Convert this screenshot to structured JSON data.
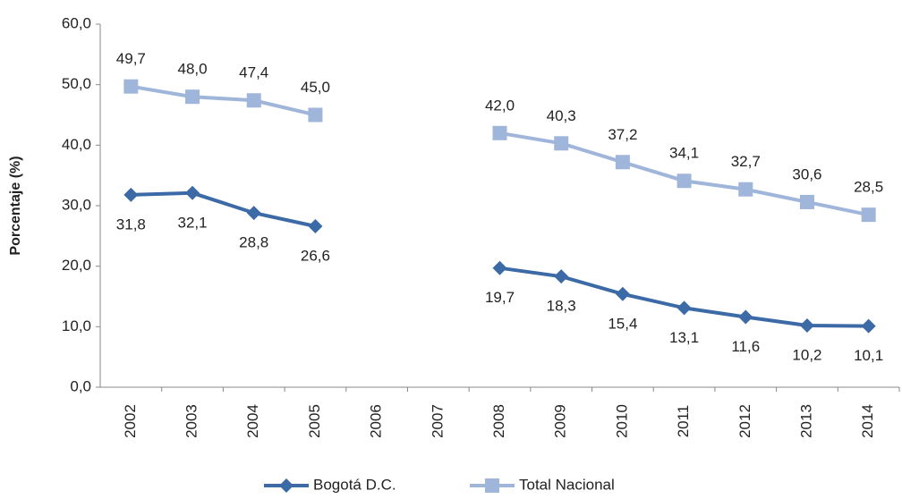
{
  "chart_data": {
    "type": "line",
    "y_label": "Porcentaje (%)",
    "categories": [
      "2002",
      "2003",
      "2004",
      "2005",
      "2006",
      "2007",
      "2008",
      "2009",
      "2010",
      "2011",
      "2012",
      "2013",
      "2014"
    ],
    "series": [
      {
        "name": "Bogotá D.C.",
        "color": "#3b6aa6",
        "marker": "diamond",
        "values": [
          31.8,
          32.1,
          28.8,
          26.6,
          null,
          null,
          19.7,
          18.3,
          15.4,
          13.1,
          11.6,
          10.2,
          10.1
        ],
        "value_labels": [
          "31,8",
          "32,1",
          "28,8",
          "26,6",
          null,
          null,
          "19,7",
          "18,3",
          "15,4",
          "13,1",
          "11,6",
          "10,2",
          "10,1"
        ]
      },
      {
        "name": "Total Nacional",
        "color": "#9fb5da",
        "marker": "square",
        "values": [
          49.7,
          48.0,
          47.4,
          45.0,
          null,
          null,
          42.0,
          40.3,
          37.2,
          34.1,
          32.7,
          30.6,
          28.5
        ],
        "value_labels": [
          "49,7",
          "48,0",
          "47,4",
          "45,0",
          null,
          null,
          "42,0",
          "40,3",
          "37,2",
          "34,1",
          "32,7",
          "30,6",
          "28,5"
        ]
      }
    ],
    "ylim": [
      0,
      60
    ],
    "yticks": [
      {
        "value": 0,
        "label": "0,0"
      },
      {
        "value": 10,
        "label": "10,0"
      },
      {
        "value": 20,
        "label": "20,0"
      },
      {
        "value": 30,
        "label": "30,0"
      },
      {
        "value": 40,
        "label": "40,0"
      },
      {
        "value": 50,
        "label": "50,0"
      },
      {
        "value": 60,
        "label": "60,0"
      }
    ],
    "grid": false,
    "legend": "bottom"
  }
}
